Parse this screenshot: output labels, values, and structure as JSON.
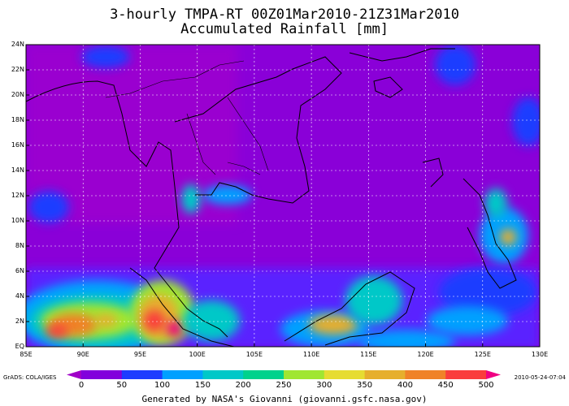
{
  "title_line1": "3-hourly TMPA-RT 00Z01Mar2010-21Z31Mar2010",
  "title_line2": "Accumulated Rainfall [mm]",
  "lat_labels": [
    "24N",
    "22N",
    "20N",
    "18N",
    "16N",
    "14N",
    "12N",
    "10N",
    "8N",
    "6N",
    "4N",
    "2N",
    "EQ"
  ],
  "lon_labels": [
    "85E",
    "90E",
    "95E",
    "100E",
    "105E",
    "110E",
    "115E",
    "120E",
    "125E",
    "130E"
  ],
  "colorbar": {
    "labels": [
      "0",
      "50",
      "100",
      "150",
      "200",
      "250",
      "300",
      "350",
      "400",
      "450",
      "500"
    ],
    "colors": [
      "#a000c8",
      "#8200dc",
      "#1e3cff",
      "#00a0ff",
      "#00c8c8",
      "#00d28c",
      "#a0e632",
      "#e6dc32",
      "#e6af2d",
      "#f08228",
      "#fa3c3c",
      "#f00082"
    ]
  },
  "source_left": "GrADS: COLA/IGES",
  "date_right": "2010-05-24-07:04",
  "footer": "Generated by NASA's Giovanni (giovanni.gsfc.nasa.gov)",
  "extent": {
    "lon_min": 85,
    "lon_max": 130,
    "lat_min": 0,
    "lat_max": 24
  }
}
